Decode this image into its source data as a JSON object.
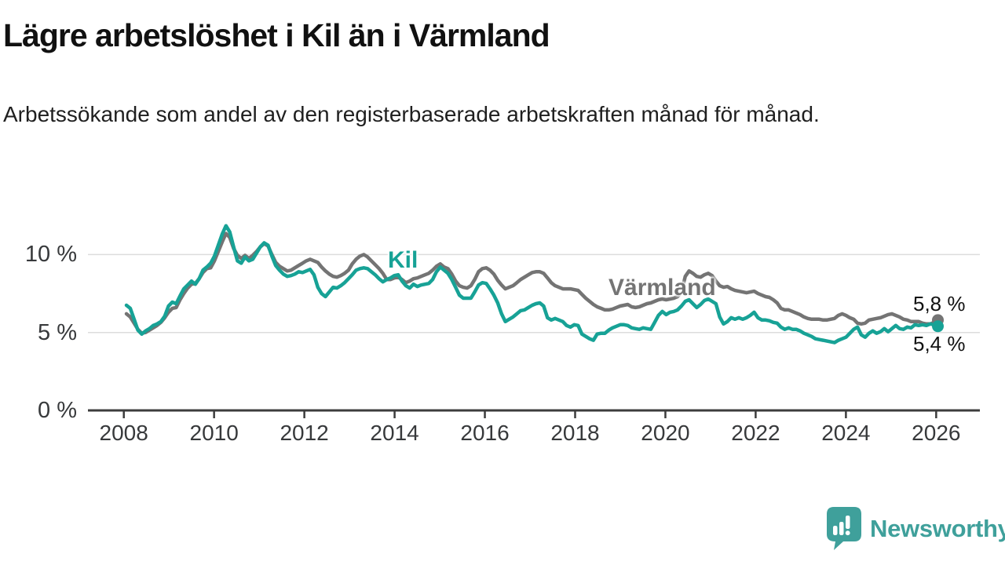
{
  "header": {
    "title": "Lägre arbetslöshet i Kil än i Värmland",
    "subtitle": "Arbetssökande som andel av den registerbaserade arbetskraften månad för månad."
  },
  "colors": {
    "kil": "#17a296",
    "varmland": "#747474",
    "grid": "#dcdcdc",
    "axis": "#3c3c3c",
    "text": "#37393b",
    "brand_teal": "#3fa09b"
  },
  "chart_data": {
    "type": "line",
    "title": "Lägre arbetslöshet i Kil än i Värmland",
    "unit": "%",
    "frequency": "monthly",
    "x_start": "2008-01",
    "x_end": "2026-01",
    "x_axis": {
      "ticks": [
        2008,
        2010,
        2012,
        2014,
        2016,
        2018,
        2020,
        2022,
        2024,
        2026
      ]
    },
    "y_axis": {
      "ticks": [
        {
          "value": 0,
          "label": "0 %"
        },
        {
          "value": 5,
          "label": "5 %"
        },
        {
          "value": 10,
          "label": "10 %"
        }
      ],
      "ylim": [
        0,
        12.5
      ],
      "grid": true
    },
    "series": [
      {
        "name": "Värmland",
        "color": "#747474",
        "end_label": "5,8 %",
        "end_value": 5.8,
        "values": [
          6.2,
          6.0,
          5.6,
          5.2,
          4.95,
          5.0,
          5.15,
          5.3,
          5.45,
          5.65,
          5.95,
          6.3,
          6.55,
          6.6,
          7.1,
          7.5,
          7.85,
          8.1,
          8.15,
          8.45,
          8.85,
          9.1,
          9.15,
          9.6,
          10.2,
          10.8,
          11.35,
          11.1,
          10.4,
          9.95,
          9.75,
          9.95,
          9.75,
          9.95,
          10.2,
          10.5,
          10.7,
          10.55,
          10.0,
          9.5,
          9.25,
          9.1,
          8.95,
          9.0,
          9.15,
          9.3,
          9.45,
          9.6,
          9.7,
          9.6,
          9.5,
          9.2,
          8.95,
          8.75,
          8.6,
          8.55,
          8.65,
          8.8,
          9.0,
          9.4,
          9.7,
          9.9,
          10.0,
          9.85,
          9.6,
          9.35,
          9.1,
          8.8,
          8.4,
          8.4,
          8.5,
          8.55,
          8.4,
          8.2,
          8.3,
          8.45,
          8.5,
          8.6,
          8.7,
          8.8,
          9.0,
          9.25,
          9.4,
          9.2,
          9.1,
          8.75,
          8.3,
          8.0,
          7.9,
          7.85,
          8.0,
          8.4,
          8.9,
          9.1,
          9.15,
          9.0,
          8.75,
          8.35,
          8.05,
          7.8,
          7.9,
          8.0,
          8.2,
          8.4,
          8.55,
          8.7,
          8.85,
          8.9,
          8.9,
          8.8,
          8.5,
          8.2,
          8.0,
          7.9,
          7.8,
          7.8,
          7.8,
          7.75,
          7.7,
          7.45,
          7.2,
          7.0,
          6.8,
          6.65,
          6.55,
          6.45,
          6.45,
          6.5,
          6.6,
          6.7,
          6.75,
          6.8,
          6.65,
          6.6,
          6.65,
          6.75,
          6.85,
          6.9,
          7.0,
          7.1,
          7.15,
          7.1,
          7.15,
          7.2,
          7.3,
          7.6,
          8.6,
          8.95,
          8.8,
          8.6,
          8.55,
          8.7,
          8.8,
          8.65,
          8.3,
          8.0,
          7.9,
          7.95,
          7.8,
          7.7,
          7.65,
          7.6,
          7.55,
          7.6,
          7.65,
          7.5,
          7.4,
          7.3,
          7.25,
          7.1,
          6.9,
          6.55,
          6.45,
          6.45,
          6.35,
          6.25,
          6.15,
          6.0,
          5.9,
          5.85,
          5.85,
          5.85,
          5.8,
          5.8,
          5.85,
          5.9,
          6.1,
          6.2,
          6.1,
          5.95,
          5.85,
          5.6,
          5.55,
          5.6,
          5.8,
          5.85,
          5.9,
          5.95,
          6.05,
          6.15,
          6.2,
          6.1,
          6.0,
          5.85,
          5.8,
          5.7,
          5.7,
          5.7,
          5.6,
          5.55,
          5.55,
          5.65,
          5.8
        ]
      },
      {
        "name": "Kil",
        "color": "#17a296",
        "end_label": "5,4 %",
        "end_value": 5.4,
        "values": [
          6.75,
          6.55,
          5.85,
          5.15,
          4.9,
          5.1,
          5.25,
          5.45,
          5.55,
          5.7,
          6.05,
          6.7,
          6.95,
          6.85,
          7.35,
          7.8,
          8.05,
          8.3,
          8.1,
          8.45,
          9.0,
          9.2,
          9.45,
          9.9,
          10.6,
          11.3,
          11.85,
          11.45,
          10.5,
          9.6,
          9.45,
          9.85,
          9.6,
          9.7,
          10.1,
          10.5,
          10.75,
          10.6,
          9.9,
          9.3,
          9.0,
          8.75,
          8.6,
          8.65,
          8.75,
          8.9,
          8.85,
          8.95,
          9.05,
          8.7,
          7.9,
          7.5,
          7.3,
          7.6,
          7.9,
          7.85,
          8.0,
          8.2,
          8.45,
          8.7,
          9.0,
          9.1,
          9.15,
          9.1,
          8.9,
          8.7,
          8.45,
          8.25,
          8.4,
          8.5,
          8.65,
          8.7,
          8.3,
          8.0,
          7.85,
          8.1,
          7.95,
          8.05,
          8.1,
          8.15,
          8.4,
          8.9,
          9.2,
          9.0,
          8.8,
          8.4,
          7.9,
          7.4,
          7.2,
          7.2,
          7.2,
          7.6,
          8.05,
          8.2,
          8.15,
          7.8,
          7.4,
          6.9,
          6.2,
          5.7,
          5.85,
          6.0,
          6.2,
          6.4,
          6.45,
          6.6,
          6.75,
          6.85,
          6.9,
          6.7,
          5.95,
          5.8,
          5.9,
          5.8,
          5.7,
          5.45,
          5.35,
          5.5,
          5.45,
          4.9,
          4.75,
          4.6,
          4.5,
          4.9,
          4.95,
          4.95,
          5.15,
          5.3,
          5.4,
          5.5,
          5.5,
          5.45,
          5.3,
          5.25,
          5.2,
          5.3,
          5.25,
          5.2,
          5.65,
          6.1,
          6.35,
          6.15,
          6.3,
          6.35,
          6.45,
          6.7,
          7.0,
          7.1,
          6.85,
          6.6,
          6.8,
          7.05,
          7.15,
          7.0,
          6.85,
          6.0,
          5.55,
          5.7,
          5.95,
          5.85,
          5.95,
          5.85,
          5.95,
          6.1,
          6.3,
          5.95,
          5.8,
          5.8,
          5.75,
          5.65,
          5.6,
          5.35,
          5.2,
          5.3,
          5.2,
          5.2,
          5.1,
          4.95,
          4.85,
          4.75,
          4.6,
          4.55,
          4.5,
          4.45,
          4.4,
          4.35,
          4.5,
          4.6,
          4.7,
          4.95,
          5.2,
          5.35,
          4.85,
          4.7,
          4.95,
          5.1,
          4.95,
          5.05,
          5.25,
          5.05,
          5.25,
          5.45,
          5.25,
          5.2,
          5.35,
          5.3,
          5.5,
          5.45,
          5.5,
          5.45,
          5.55,
          5.5,
          5.4
        ]
      }
    ],
    "legend_position": "inline-labels"
  },
  "footer": {
    "brand": "Newsworthy"
  }
}
